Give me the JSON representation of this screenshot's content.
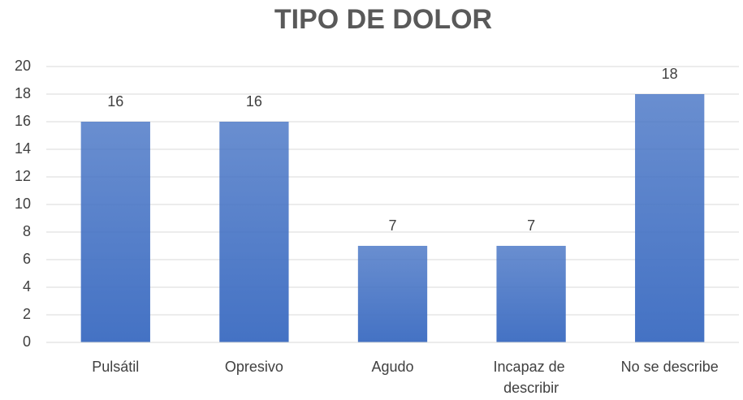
{
  "chart_data": {
    "type": "bar",
    "title": "TIPO DE DOLOR",
    "categories": [
      "Pulsátil",
      "Opresivo",
      "Agudo",
      "Incapaz de describir",
      "No se describe"
    ],
    "values": [
      16,
      16,
      7,
      7,
      18
    ],
    "color": "#4472c4",
    "ylim": [
      0,
      20
    ],
    "yticks": [
      0,
      2,
      4,
      6,
      8,
      10,
      12,
      14,
      16,
      18,
      20
    ],
    "grid": true
  }
}
